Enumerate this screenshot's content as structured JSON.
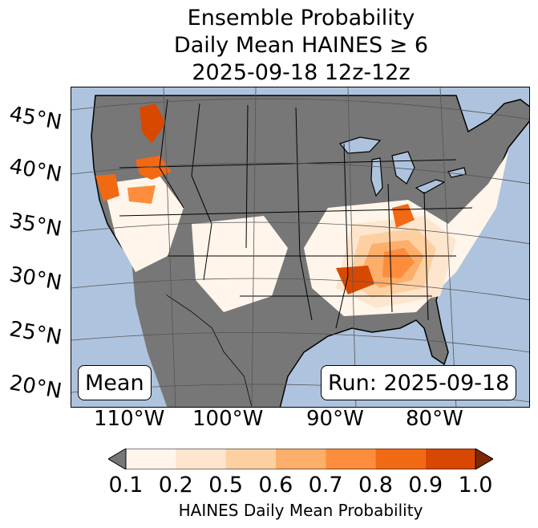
{
  "title": {
    "line1": "Ensemble Probability",
    "line2": "Daily Mean HAINES ≥ 6",
    "line3": "2025-09-18 12z-12z"
  },
  "map": {
    "lat_labels": [
      "45°N",
      "40°N",
      "35°N",
      "30°N",
      "25°N",
      "20°N"
    ],
    "lon_labels": [
      "110°W",
      "100°W",
      "90°W",
      "80°W"
    ],
    "stat_box": "Mean",
    "run_box": "Run: 2025-09-18",
    "colors": {
      "ocean": "#aec3dd",
      "below_range": "#777777",
      "above_range": "#7f2704"
    }
  },
  "colorbar": {
    "ticks": [
      "0.1",
      "0.2",
      "0.5",
      "0.6",
      "0.7",
      "0.8",
      "0.9",
      "1.0"
    ],
    "colors": [
      "#fff5eb",
      "#fee6ce",
      "#fdd0a2",
      "#fdae6b",
      "#fd8d3c",
      "#f16913",
      "#d94801"
    ],
    "label": "HAINES Daily Mean Probability"
  }
}
